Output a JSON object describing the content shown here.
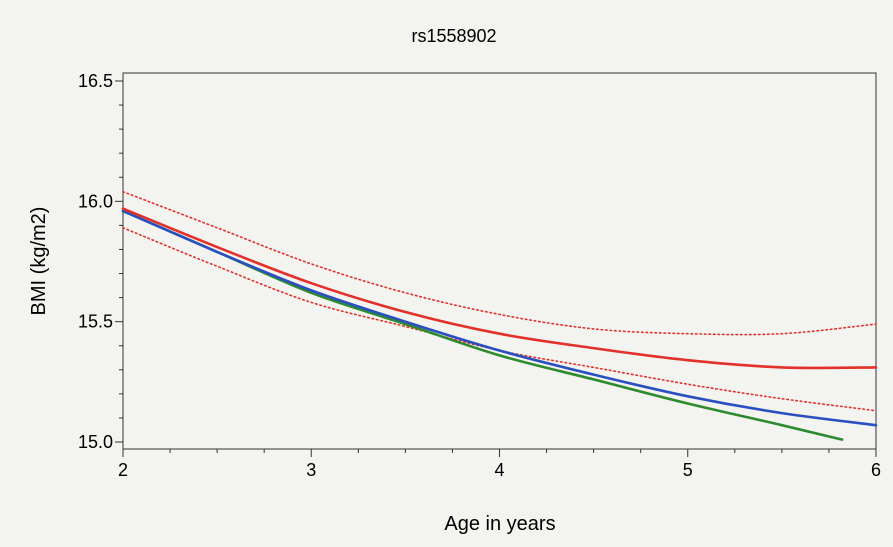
{
  "chart_data": {
    "type": "line",
    "title": "rs1558902",
    "xlabel": "Age in years",
    "ylabel": "BMI (kg/m2)",
    "xlim": [
      2,
      6
    ],
    "ylim": [
      15.0,
      16.5
    ],
    "xticks": [
      "2",
      "3",
      "4",
      "5",
      "6"
    ],
    "yticks": [
      "15.0",
      "15.5",
      "16.0",
      "16.5"
    ],
    "grid": false,
    "series": [
      {
        "color": "#e3302a",
        "style": "solid",
        "x": [
          2.0,
          2.5,
          3.0,
          3.5,
          4.0,
          4.5,
          5.0,
          5.5,
          6.0
        ],
        "y": [
          15.97,
          15.81,
          15.66,
          15.54,
          15.45,
          15.39,
          15.34,
          15.31,
          15.31
        ]
      },
      {
        "color": "#e3302a",
        "style": "dotted",
        "x": [
          2.0,
          2.5,
          3.0,
          3.5,
          4.0,
          4.5,
          5.0,
          5.5,
          6.0
        ],
        "y": [
          16.04,
          15.89,
          15.74,
          15.62,
          15.53,
          15.47,
          15.45,
          15.45,
          15.49
        ]
      },
      {
        "color": "#e3302a",
        "style": "dotted",
        "x": [
          2.0,
          2.5,
          3.0,
          3.5,
          4.0,
          4.5,
          5.0,
          5.5,
          6.0
        ],
        "y": [
          15.89,
          15.73,
          15.58,
          15.48,
          15.38,
          15.31,
          15.24,
          15.18,
          15.13
        ]
      },
      {
        "color": "#2a4fc0",
        "style": "solid",
        "x": [
          2.0,
          2.5,
          3.0,
          3.5,
          4.0,
          4.5,
          5.0,
          5.5,
          6.0
        ],
        "y": [
          15.96,
          15.79,
          15.63,
          15.5,
          15.38,
          15.28,
          15.19,
          15.12,
          15.07
        ]
      },
      {
        "color": "#2d8a2d",
        "style": "solid",
        "x": [
          2.0,
          2.5,
          3.0,
          3.5,
          4.0,
          4.5,
          5.0,
          5.5,
          5.82
        ],
        "y": [
          15.96,
          15.79,
          15.62,
          15.49,
          15.36,
          15.26,
          15.16,
          15.07,
          15.01
        ]
      }
    ]
  }
}
